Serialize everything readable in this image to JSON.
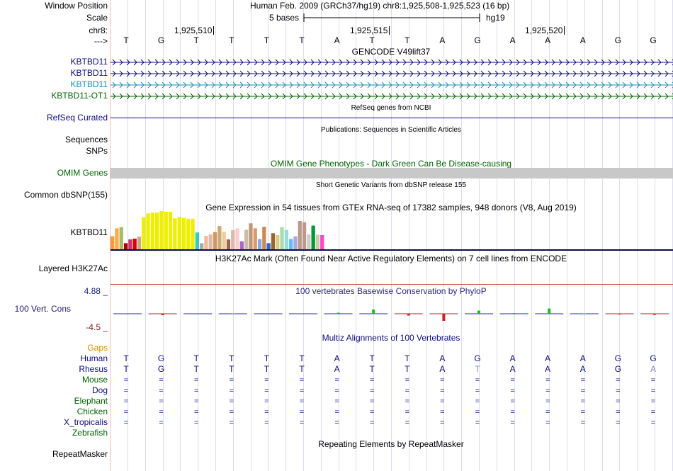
{
  "header": {
    "window_position_label": "Window Position",
    "scale_label": "Scale",
    "chrom_label": "chr8:",
    "strand_label": "--->",
    "window_position_value": "Human Feb. 2009 (GRCh37/hg19)   chr8:1,925,508-1,925,523 (16 bp)",
    "scale_value": "5 bases",
    "assembly": "hg19",
    "ticks": [
      "1,925,510",
      "1,925,515",
      "1,925,520"
    ],
    "bases": [
      "T",
      "G",
      "T",
      "T",
      "T",
      "T",
      "A",
      "T",
      "T",
      "A",
      "G",
      "A",
      "A",
      "A",
      "G",
      "G"
    ]
  },
  "tracks": {
    "gencode": {
      "title": "GENCODE V49lift37",
      "items": [
        {
          "label": "KBTBD11",
          "color": "#0c0c78"
        },
        {
          "label": "KBTBD11",
          "color": "#0c0c78"
        },
        {
          "label": "KBTBD11",
          "color": "#1a8fb5"
        },
        {
          "label": "KBTBD11-OT1",
          "color": "#006400"
        }
      ]
    },
    "refseq": {
      "label": "RefSeq Curated",
      "title": "RefSeq genes from NCBI",
      "color": "#0c0c78"
    },
    "publications": {
      "label": "Sequences",
      "title": "Publications: Sequences in Scientific Articles"
    },
    "snps": {
      "label": "SNPs"
    },
    "omim": {
      "label": "OMIM Genes",
      "title": "OMIM Gene Phenotypes - Dark Green Can Be Disease-causing",
      "color": "#006400"
    },
    "dbsnp": {
      "label": "Common dbSNP(155)",
      "title": "Short Genetic Variants from dbSNP release 155"
    },
    "gtex": {
      "label": "KBTBD11",
      "title": "Gene Expression in 54 tissues from GTEx RNA-seq of 17382 samples, 948 donors (V8, Aug 2019)",
      "bars": [
        {
          "v": 0.34,
          "c": "#ff9933"
        },
        {
          "v": 0.55,
          "c": "#ffaa44"
        },
        {
          "v": 0.58,
          "c": "#aabb66"
        },
        {
          "v": 0.16,
          "c": "#aa0000"
        },
        {
          "v": 0.26,
          "c": "#cc3366"
        },
        {
          "v": 0.28,
          "c": "#dd0000"
        },
        {
          "v": 0.33,
          "c": "#c8a882"
        },
        {
          "v": 0.84,
          "c": "#eeee00"
        },
        {
          "v": 0.94,
          "c": "#eeee00"
        },
        {
          "v": 0.96,
          "c": "#eeee00"
        },
        {
          "v": 0.96,
          "c": "#eeee00"
        },
        {
          "v": 1.0,
          "c": "#eeee00"
        },
        {
          "v": 0.98,
          "c": "#eeee00"
        },
        {
          "v": 0.98,
          "c": "#eeee00"
        },
        {
          "v": 0.81,
          "c": "#eeee00"
        },
        {
          "v": 0.84,
          "c": "#eeee00"
        },
        {
          "v": 0.82,
          "c": "#eeee00"
        },
        {
          "v": 0.8,
          "c": "#eeee00"
        },
        {
          "v": 0.8,
          "c": "#eeee00"
        },
        {
          "v": 0.44,
          "c": "#33cccc"
        },
        {
          "v": 0.16,
          "c": "#aaaaaa"
        },
        {
          "v": 0.35,
          "c": "#eebb99"
        },
        {
          "v": 0.39,
          "c": "#ddbbaa"
        },
        {
          "v": 0.45,
          "c": "#cc9966"
        },
        {
          "v": 0.61,
          "c": "#ccaa77"
        },
        {
          "v": 0.46,
          "c": "#eecc99"
        },
        {
          "v": 0.26,
          "c": "#996655"
        },
        {
          "v": 0.5,
          "c": "#ddbbaa"
        },
        {
          "v": 0.55,
          "c": "#ffcccc"
        },
        {
          "v": 0.21,
          "c": "#aa66cc"
        },
        {
          "v": 0.51,
          "c": "#ccbbaa"
        },
        {
          "v": 0.68,
          "c": "#bb9977"
        },
        {
          "v": 0.55,
          "c": "#dd9966"
        },
        {
          "v": 0.27,
          "c": "#88aadd"
        },
        {
          "v": 0.59,
          "c": "#cc8855"
        },
        {
          "v": 0.16,
          "c": "#3366cc"
        },
        {
          "v": 0.42,
          "c": "#996633"
        },
        {
          "v": 0.37,
          "c": "#ddcc88"
        },
        {
          "v": 0.58,
          "c": "#aaddaa"
        },
        {
          "v": 0.51,
          "c": "#99dddd"
        },
        {
          "v": 0.27,
          "c": "#66bbff"
        },
        {
          "v": 0.34,
          "c": "#aaaadd"
        },
        {
          "v": 0.74,
          "c": "#bb9988"
        },
        {
          "v": 0.71,
          "c": "#bb9988"
        },
        {
          "v": 0.39,
          "c": "#cccccc"
        },
        {
          "v": 0.62,
          "c": "#009933"
        },
        {
          "v": 0.38,
          "c": "#ccccaa"
        },
        {
          "v": 0.37,
          "c": "#ff44cc"
        }
      ]
    },
    "h3k27ac": {
      "label": "Layered H3K27Ac",
      "title": "H3K27Ac Mark (Often Found Near Active Regulatory Elements) on 7 cell lines from ENCODE"
    },
    "phylop": {
      "label": "100 Vert. Cons",
      "title": "100 vertebrates Basewise Conservation by PhyloP",
      "max": "4.88 _",
      "min": "-4.5 _",
      "values": [
        0,
        -0.4,
        0,
        0.1,
        0,
        0,
        0.3,
        1.2,
        -0.5,
        -2.0,
        0.9,
        0.2,
        1.5,
        0.1,
        -0.2,
        -0.3
      ]
    },
    "multiz": {
      "title": "Multiz Alignments of 100 Vertebrates",
      "gaps_label": "Gaps",
      "species": [
        {
          "name": "Human",
          "color": "#0c0c78"
        },
        {
          "name": "Rhesus",
          "color": "#0c0c78"
        },
        {
          "name": "Mouse",
          "color": "#006400"
        },
        {
          "name": "Dog",
          "color": "#0c0c78"
        },
        {
          "name": "Elephant",
          "color": "#006400"
        },
        {
          "name": "Chicken",
          "color": "#006400"
        },
        {
          "name": "X_tropicalis",
          "color": "#0c0c78"
        },
        {
          "name": "Zebrafish",
          "color": "#006400"
        }
      ],
      "rhesus_bases": [
        "T",
        "G",
        "T",
        "T",
        "T",
        "T",
        "A",
        "T",
        "T",
        "A",
        "T",
        "A",
        "A",
        "A",
        "G",
        "A"
      ],
      "match_symbol": "="
    },
    "repeatmasker": {
      "label": "RepeatMasker",
      "title": "Repeating Elements by RepeatMasker"
    }
  }
}
